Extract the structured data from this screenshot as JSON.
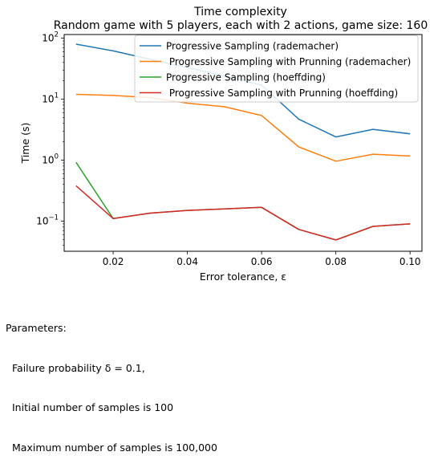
{
  "chart_data": {
    "type": "line",
    "title": "Time complexity",
    "subtitle": "Random game with 5 players, each with 2 actions, game size: 160",
    "xlabel": "Error tolerance, ε",
    "ylabel": "Time (s)",
    "y_scale": "log",
    "xlim": [
      0.0068,
      0.1032
    ],
    "ylim": [
      0.032,
      115
    ],
    "x_ticks": [
      0.02,
      0.04,
      0.06,
      0.08,
      0.1
    ],
    "x_tick_labels": [
      "0.02",
      "0.04",
      "0.06",
      "0.08",
      "0.10"
    ],
    "y_ticks": [
      0.1,
      1,
      10,
      100
    ],
    "y_tick_labels": [
      {
        "base": "10",
        "exp": "−1"
      },
      {
        "base": "10",
        "exp": "0"
      },
      {
        "base": "10",
        "exp": "1"
      },
      {
        "base": "10",
        "exp": "2"
      }
    ],
    "grid": false,
    "legend_position": "top-right",
    "x": [
      0.01,
      0.02,
      0.03,
      0.04,
      0.05,
      0.06,
      0.07,
      0.08,
      0.09,
      0.1
    ],
    "series": [
      {
        "name": "Progressive Sampling (rademacher)",
        "color": "#1f77b4",
        "values": [
          80,
          62,
          45,
          33,
          24,
          17,
          4.7,
          2.4,
          3.2,
          2.7
        ]
      },
      {
        "name": " Progressive Sampling with Prunning (rademacher)",
        "color": "#ff7f0e",
        "values": [
          12,
          11.5,
          10.6,
          8.6,
          7.5,
          5.4,
          1.65,
          0.96,
          1.25,
          1.17
        ]
      },
      {
        "name": "Progressive Sampling (hoeffding)",
        "color": "#2ca02c",
        "values": [
          0.92,
          0.11,
          0.135,
          0.15,
          0.158,
          0.168,
          0.073,
          0.049,
          0.082,
          0.09
        ]
      },
      {
        "name": " Progressive Sampling with Prunning (hoeffding)",
        "color": "#d62728",
        "values": [
          0.38,
          0.11,
          0.135,
          0.15,
          0.158,
          0.168,
          0.073,
          0.049,
          0.082,
          0.09
        ]
      }
    ]
  },
  "caption": {
    "heading": "Parameters:",
    "line1": "Failure probability δ = 0.1,",
    "line2": "Initial number of samples is 100",
    "line3": "Maximum number of samples is 100,000"
  }
}
